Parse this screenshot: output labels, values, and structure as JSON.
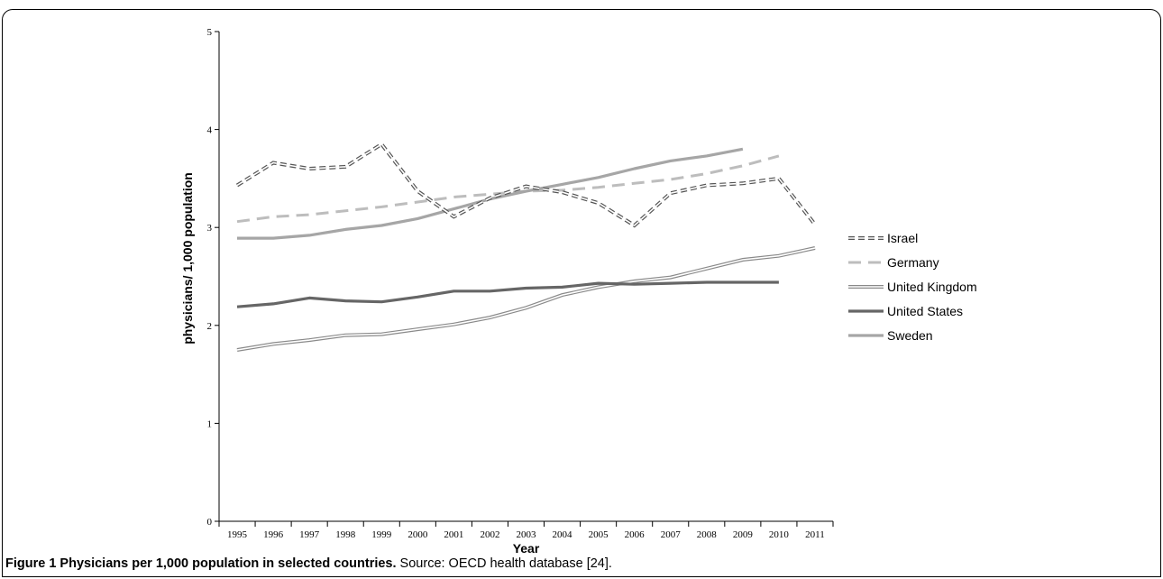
{
  "chart_data": {
    "type": "line",
    "ylabel": "physicians/ 1,000 population",
    "xlabel": "Year",
    "ylim": [
      0,
      5
    ],
    "yticks": [
      "0",
      "1",
      "2",
      "3",
      "4",
      "5"
    ],
    "categories": [
      "1995",
      "1996",
      "1997",
      "1998",
      "1999",
      "2000",
      "2001",
      "2002",
      "2003",
      "2004",
      "2005",
      "2006",
      "2007",
      "2008",
      "2009",
      "2010",
      "2011"
    ],
    "grid": false,
    "legend_position": "right",
    "series": [
      {
        "name": "Israel",
        "style": "outline-dashed",
        "color": "#555555",
        "values": [
          3.43,
          3.66,
          3.6,
          3.62,
          3.85,
          3.37,
          3.11,
          3.3,
          3.42,
          3.36,
          3.25,
          3.02,
          3.35,
          3.43,
          3.45,
          3.5,
          3.03
        ]
      },
      {
        "name": "Germany",
        "style": "dashed",
        "color": "#bdbdbd",
        "values": [
          3.06,
          3.11,
          3.13,
          3.17,
          3.21,
          3.26,
          3.31,
          3.34,
          3.37,
          3.38,
          3.41,
          3.45,
          3.49,
          3.55,
          3.63,
          3.73,
          null
        ]
      },
      {
        "name": "United Kingdom",
        "style": "outline",
        "color": "#8a8a8a",
        "values": [
          1.75,
          1.81,
          1.85,
          1.9,
          1.91,
          1.96,
          2.01,
          2.08,
          2.18,
          2.31,
          2.39,
          2.45,
          2.49,
          2.58,
          2.67,
          2.71,
          2.79
        ]
      },
      {
        "name": "United States",
        "style": "solid",
        "color": "#666666",
        "values": [
          2.19,
          2.22,
          2.28,
          2.25,
          2.24,
          2.29,
          2.35,
          2.35,
          2.38,
          2.39,
          2.43,
          2.42,
          2.43,
          2.44,
          2.44,
          2.44,
          null
        ]
      },
      {
        "name": "Sweden",
        "style": "solid",
        "color": "#a6a6a6",
        "values": [
          2.89,
          2.89,
          2.92,
          2.98,
          3.02,
          3.09,
          3.19,
          3.29,
          3.37,
          3.44,
          3.51,
          3.6,
          3.68,
          3.73,
          3.8,
          null,
          null
        ]
      }
    ]
  },
  "caption": {
    "bold": "Figure 1 Physicians per 1,000 population in selected countries.",
    "rest": " Source: OECD health database [24]."
  }
}
